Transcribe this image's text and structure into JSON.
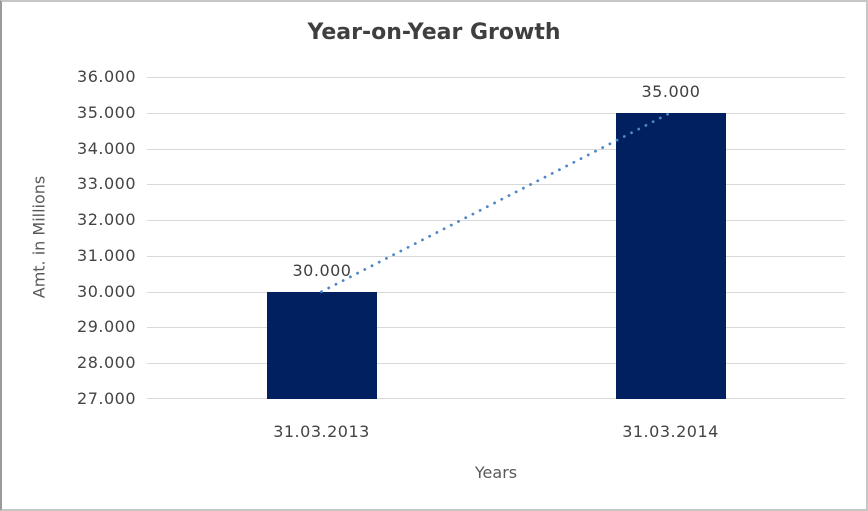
{
  "frame": {
    "background": "#ffffff",
    "border_color": "#c6c6c6"
  },
  "chart_data": {
    "type": "bar",
    "title": "Year-on-Year Growth",
    "xlabel": "Years",
    "ylabel": "Amt. in Millions",
    "categories": [
      "31.03.2013",
      "31.03.2014"
    ],
    "values": [
      30000,
      35000
    ],
    "value_labels": [
      "30.000",
      "35.000"
    ],
    "ylim": [
      27000,
      36000
    ],
    "ytick_step": 1000,
    "ytick_labels": [
      "36.000",
      "35.000",
      "34.000",
      "33.000",
      "32.000",
      "31.000",
      "30.000",
      "29.000",
      "28.000",
      "27.000"
    ],
    "grid": "horizontal",
    "legend": "none",
    "bar_color": "#002060",
    "gridline_color": "#d9d9d9",
    "trendline": {
      "style": "dotted",
      "color": "#4e86c8",
      "from_value": 30000,
      "to_value": 35000
    },
    "text_colors": {
      "title": "#3f3f3f",
      "axis_titles": "#595959",
      "tick_labels": "#444444",
      "data_labels": "#404040"
    }
  }
}
